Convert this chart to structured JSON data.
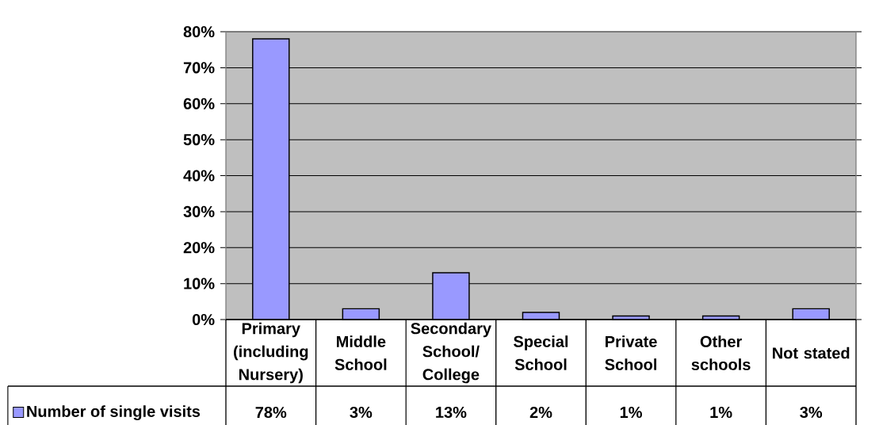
{
  "chart_data": {
    "type": "bar",
    "categories": [
      "Primary (including Nursery)",
      "Middle School",
      "Secondary School/ College",
      "Special School",
      "Private School",
      "Other schools",
      "Not stated"
    ],
    "series": [
      {
        "name": "Number of single visits",
        "color": "#9999ff",
        "values": [
          78,
          3,
          13,
          2,
          1,
          1,
          3
        ],
        "value_labels": [
          "78%",
          "3%",
          "13%",
          "2%",
          "1%",
          "1%",
          "3%"
        ]
      }
    ],
    "ylim": [
      0,
      80
    ],
    "yticks": [
      {
        "value": 0,
        "label": "0%"
      },
      {
        "value": 10,
        "label": "10%"
      },
      {
        "value": 20,
        "label": "20%"
      },
      {
        "value": 30,
        "label": "30%"
      },
      {
        "value": 40,
        "label": "40%"
      },
      {
        "value": 50,
        "label": "50%"
      },
      {
        "value": 60,
        "label": "60%"
      },
      {
        "value": 70,
        "label": "70%"
      },
      {
        "value": 80,
        "label": "80%"
      }
    ],
    "grid": "y",
    "legend": "bottom left"
  }
}
